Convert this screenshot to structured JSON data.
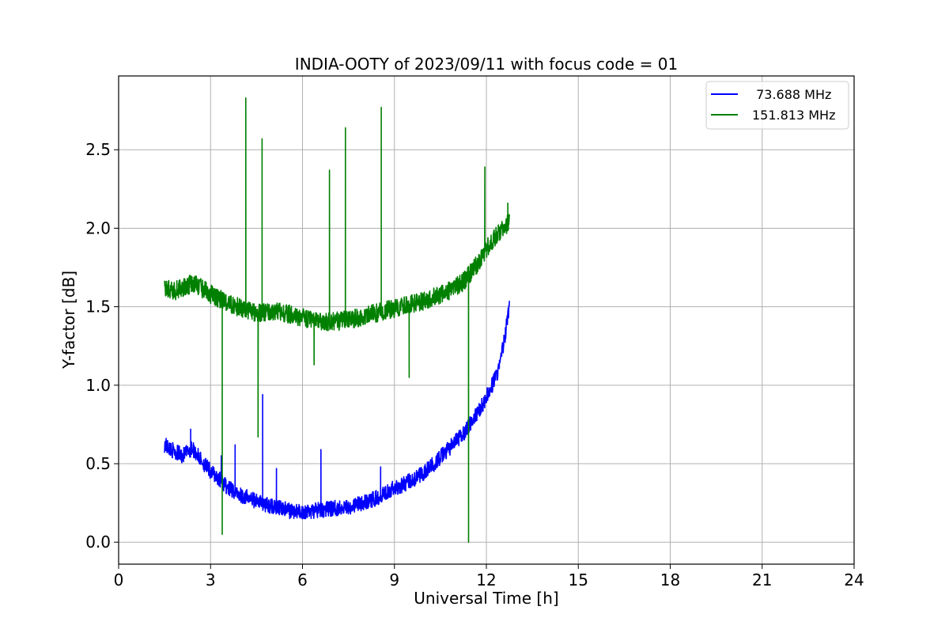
{
  "chart_data": {
    "type": "line",
    "title": "INDIA-OOTY of 2023/09/11 with focus code = 01",
    "xlabel": "Universal Time [h]",
    "ylabel": "Y-factor [dB]",
    "xlim": [
      0,
      24
    ],
    "ylim": [
      -0.14,
      2.97
    ],
    "xticks": [
      0,
      3,
      6,
      9,
      12,
      15,
      18,
      21,
      24
    ],
    "xtick_labels": [
      "0",
      "3",
      "6",
      "9",
      "12",
      "15",
      "18",
      "21",
      "24"
    ],
    "yticks": [
      0.0,
      0.5,
      1.0,
      1.5,
      2.0,
      2.5
    ],
    "ytick_labels": [
      "0.0",
      "0.5",
      "1.0",
      "1.5",
      "2.0",
      "2.5"
    ],
    "grid": true,
    "legend_position": "top-right",
    "series": [
      {
        "name": " 73.688 MHz",
        "color": "#0000ff",
        "x": [
          1.5,
          1.8,
          2.1,
          2.4,
          2.7,
          3.0,
          3.3,
          3.6,
          4.0,
          4.4,
          4.8,
          5.2,
          5.6,
          6.0,
          6.4,
          6.8,
          7.2,
          7.6,
          8.0,
          8.4,
          8.8,
          9.2,
          9.6,
          10.0,
          10.4,
          10.8,
          11.2,
          11.5,
          11.8,
          12.1,
          12.4,
          12.6,
          12.75
        ],
        "y": [
          0.62,
          0.58,
          0.55,
          0.6,
          0.52,
          0.45,
          0.4,
          0.34,
          0.3,
          0.27,
          0.24,
          0.22,
          0.2,
          0.19,
          0.2,
          0.21,
          0.22,
          0.23,
          0.25,
          0.28,
          0.33,
          0.36,
          0.4,
          0.45,
          0.52,
          0.6,
          0.68,
          0.76,
          0.85,
          0.96,
          1.1,
          1.3,
          1.5
        ],
        "noise": 0.05,
        "spikes": [
          {
            "x": 2.35,
            "y": 0.72
          },
          {
            "x": 3.35,
            "y": 0.55
          },
          {
            "x": 3.8,
            "y": 0.62
          },
          {
            "x": 4.7,
            "y": 0.94
          },
          {
            "x": 5.15,
            "y": 0.47
          },
          {
            "x": 6.6,
            "y": 0.59
          },
          {
            "x": 8.55,
            "y": 0.48
          }
        ]
      },
      {
        "name": "151.813 MHz",
        "color": "#008000",
        "x": [
          1.5,
          1.8,
          2.1,
          2.4,
          2.7,
          3.0,
          3.3,
          3.6,
          4.0,
          4.4,
          4.8,
          5.2,
          5.6,
          6.0,
          6.4,
          6.8,
          7.2,
          7.6,
          8.0,
          8.4,
          8.8,
          9.2,
          9.6,
          10.0,
          10.4,
          10.8,
          11.2,
          11.5,
          11.8,
          12.1,
          12.4,
          12.6,
          12.75
        ],
        "y": [
          1.62,
          1.6,
          1.62,
          1.65,
          1.62,
          1.58,
          1.55,
          1.52,
          1.49,
          1.46,
          1.47,
          1.47,
          1.45,
          1.43,
          1.41,
          1.4,
          1.41,
          1.42,
          1.44,
          1.46,
          1.48,
          1.5,
          1.52,
          1.54,
          1.57,
          1.6,
          1.65,
          1.72,
          1.8,
          1.9,
          1.97,
          2.0,
          2.05
        ],
        "noise": 0.06,
        "spikes": [
          {
            "x": 4.15,
            "y": 2.83
          },
          {
            "x": 4.68,
            "y": 2.57
          },
          {
            "x": 6.88,
            "y": 2.37
          },
          {
            "x": 7.4,
            "y": 2.64
          },
          {
            "x": 8.57,
            "y": 2.77
          },
          {
            "x": 11.95,
            "y": 2.39
          },
          {
            "x": 12.7,
            "y": 2.16
          }
        ],
        "dips": [
          {
            "x": 3.38,
            "y": 0.05
          },
          {
            "x": 4.55,
            "y": 0.67
          },
          {
            "x": 6.38,
            "y": 1.13
          },
          {
            "x": 9.48,
            "y": 1.05
          },
          {
            "x": 11.42,
            "y": 0.0
          }
        ]
      }
    ]
  }
}
